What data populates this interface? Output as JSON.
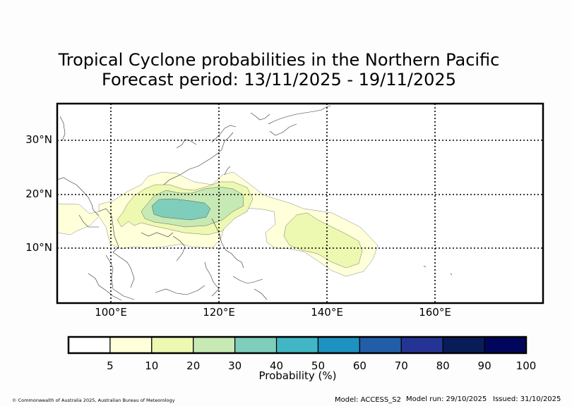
{
  "title_line1": "Tropical Cyclone probabilities in the Northern Pacific",
  "title_line2": "Forecast period: 13/11/2025 - 19/11/2025",
  "map": {
    "extent": {
      "lon_min": 90,
      "lon_max": 180,
      "lat_min": 0,
      "lat_max": 37
    },
    "lat_labels": [
      "30°N",
      "20°N",
      "10°N"
    ],
    "lon_labels": [
      "100°E",
      "120°E",
      "140°E",
      "160°E"
    ],
    "gridlines": "dotted"
  },
  "colorbar": {
    "label": "Probability (%)",
    "tick_labels": [
      "5",
      "10",
      "20",
      "30",
      "40",
      "50",
      "60",
      "70",
      "80",
      "90",
      "100"
    ],
    "colors": [
      "#ffffff",
      "#ffffd9",
      "#edf8b1",
      "#c7e9b4",
      "#7fcdbb",
      "#41b6c4",
      "#1d91c0",
      "#225ea8",
      "#253494",
      "#081d58",
      "#01065c"
    ]
  },
  "probability_levels_present": [
    "5",
    "10",
    "20",
    "30"
  ],
  "footer": {
    "credit": "© Commonwealth of Australia 2025, Australian Bureau of Meteorology",
    "model": "Model: ACCESS_S2",
    "model_run": "Model run: 29/10/2025",
    "issued": "Issued: 31/10/2025"
  }
}
